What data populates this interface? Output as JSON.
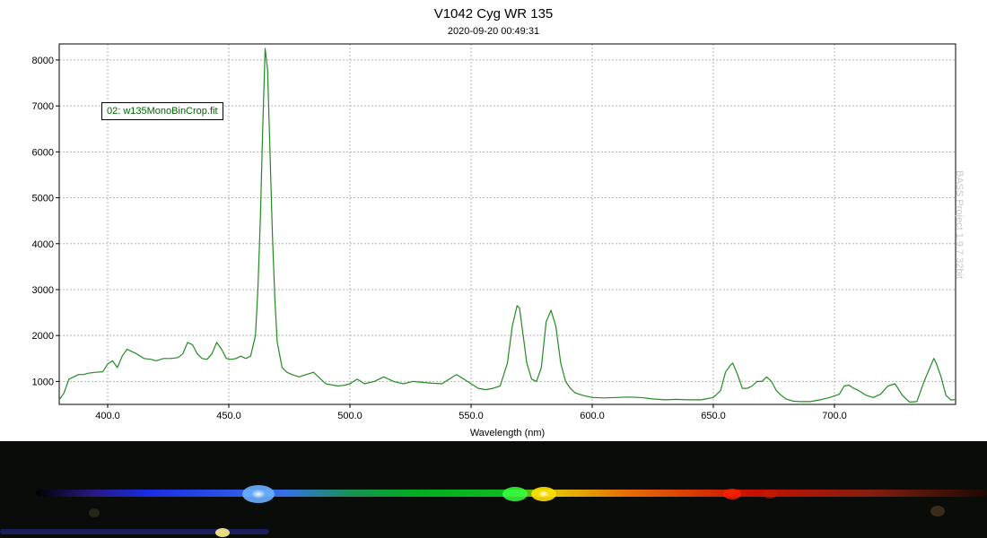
{
  "chart_data": {
    "type": "line",
    "title": "V1042 Cyg  WR 135",
    "subtitle": "2020-09-20 00:49:31",
    "xlabel": "Wavelength (nm)",
    "ylabel": "",
    "xlim": [
      380,
      750
    ],
    "ylim": [
      500,
      8350
    ],
    "xticks": [
      400,
      450,
      500,
      550,
      600,
      650,
      700
    ],
    "xtick_labels": [
      "400.0",
      "450.0",
      "500.0",
      "550.0",
      "600.0",
      "650.0",
      "700.0"
    ],
    "yticks": [
      1000,
      2000,
      3000,
      4000,
      5000,
      6000,
      7000,
      8000
    ],
    "ytick_labels": [
      "1000",
      "2000",
      "3000",
      "4000",
      "5000",
      "6000",
      "7000",
      "8000"
    ],
    "grid": true,
    "legend_position": "top-left",
    "series": [
      {
        "name": "02: w135MonoBinCrop.fit",
        "color": "#228b22",
        "x": [
          380,
          382,
          384,
          386,
          388,
          390,
          392,
          395,
          398,
          400,
          402,
          404,
          406,
          408,
          410,
          412,
          415,
          418,
          420,
          423,
          426,
          429,
          431,
          433,
          435,
          437,
          439,
          441,
          443,
          445,
          447,
          449,
          451,
          453,
          455,
          457,
          459,
          461,
          462,
          463,
          464,
          465,
          466,
          467,
          468,
          469,
          470,
          472,
          474,
          476,
          479,
          482,
          485,
          487,
          490,
          495,
          498,
          500,
          503,
          506,
          510,
          514,
          518,
          522,
          526,
          530,
          534,
          538,
          541,
          544,
          547,
          550,
          553,
          556,
          559,
          562,
          565,
          567,
          569,
          570,
          571,
          573,
          575,
          577,
          579,
          581,
          583,
          585,
          587,
          589,
          591,
          593,
          596,
          600,
          605,
          610,
          615,
          620,
          625,
          630,
          635,
          640,
          645,
          650,
          653,
          655,
          657,
          658,
          660,
          662,
          664,
          666,
          668,
          670,
          672,
          674,
          676,
          678,
          680,
          683,
          686,
          690,
          694,
          698,
          702,
          704,
          706,
          708,
          710,
          713,
          716,
          719,
          722,
          725,
          728,
          731,
          734,
          737,
          739,
          741,
          742,
          744,
          746,
          748,
          750
        ],
        "values": [
          600,
          750,
          1050,
          1100,
          1150,
          1150,
          1180,
          1200,
          1210,
          1380,
          1450,
          1300,
          1550,
          1700,
          1650,
          1600,
          1500,
          1480,
          1450,
          1500,
          1500,
          1520,
          1600,
          1850,
          1800,
          1600,
          1500,
          1480,
          1600,
          1850,
          1700,
          1500,
          1480,
          1500,
          1550,
          1500,
          1550,
          2000,
          3000,
          4500,
          6500,
          8250,
          7800,
          6000,
          4200,
          2800,
          1850,
          1300,
          1200,
          1150,
          1100,
          1150,
          1200,
          1100,
          950,
          900,
          920,
          950,
          1050,
          950,
          1000,
          1100,
          1000,
          950,
          1000,
          980,
          960,
          950,
          1050,
          1150,
          1050,
          950,
          850,
          820,
          850,
          900,
          1400,
          2200,
          2650,
          2600,
          2200,
          1400,
          1050,
          1000,
          1300,
          2300,
          2550,
          2200,
          1400,
          1000,
          850,
          750,
          700,
          650,
          640,
          650,
          660,
          650,
          620,
          600,
          610,
          600,
          600,
          650,
          800,
          1200,
          1350,
          1400,
          1150,
          850,
          850,
          900,
          1000,
          1000,
          1100,
          1000,
          800,
          700,
          620,
          570,
          560,
          560,
          600,
          650,
          720,
          900,
          920,
          850,
          800,
          700,
          650,
          720,
          900,
          950,
          700,
          550,
          560,
          1000,
          1250,
          1500,
          1400,
          1100,
          700,
          600,
          600
        ]
      }
    ]
  },
  "watermark": "BASS Project 1.9.7 32bit",
  "spectrum_image": {
    "description_colors": [
      "#1d2fff",
      "#3a7bff",
      "#00e020",
      "#ffd000",
      "#ff7a00",
      "#e01000"
    ],
    "bright_spots_nm": [
      466,
      570,
      581,
      656
    ]
  }
}
